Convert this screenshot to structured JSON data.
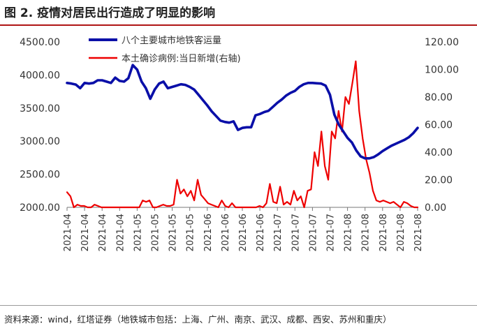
{
  "figure": {
    "title": "图 2. 疫情对居民出行造成了明显的影响",
    "source": "资料来源：wind，红塔证券（地铁城市包括：上海、广州、南京、武汉、成都、西安、苏州和重庆）"
  },
  "colors": {
    "rule": "#b01515",
    "metro": "#0a0fa8",
    "cases": "#ee0000"
  },
  "chart_data": {
    "type": "line",
    "grid": false,
    "legend_position": "top-center",
    "x_tick_labels": [
      "2021-04",
      "2021-04",
      "2021-04",
      "2021-04",
      "2021-05",
      "2021-05",
      "2021-05",
      "2021-05",
      "2021-06",
      "2021-06",
      "2021-06",
      "2021-06",
      "2021-07",
      "2021-07",
      "2021-07",
      "2021-07",
      "2021-08",
      "2021-08",
      "2021-08",
      "2021-08",
      "2021-08"
    ],
    "y_left": {
      "ticks": [
        "2000.00",
        "2500.00",
        "3000.00",
        "3500.00",
        "4000.00",
        "4500.00"
      ],
      "range": [
        2000,
        4500
      ]
    },
    "y_right": {
      "ticks": [
        "0.00",
        "20.00",
        "40.00",
        "60.00",
        "80.00",
        "100.00",
        "120.00"
      ],
      "range": [
        0,
        120
      ]
    },
    "series": [
      {
        "name": "八个主要城市地铁客运量",
        "axis": "left",
        "values": [
          3880,
          3870,
          3855,
          3800,
          3880,
          3870,
          3880,
          3920,
          3920,
          3900,
          3880,
          3960,
          3910,
          3900,
          3950,
          4150,
          4080,
          3900,
          3800,
          3640,
          3780,
          3870,
          3900,
          3800,
          3820,
          3840,
          3860,
          3850,
          3820,
          3780,
          3700,
          3620,
          3540,
          3450,
          3380,
          3310,
          3290,
          3280,
          3300,
          3170,
          3200,
          3210,
          3210,
          3390,
          3410,
          3440,
          3460,
          3520,
          3580,
          3630,
          3690,
          3730,
          3760,
          3820,
          3860,
          3880,
          3880,
          3875,
          3870,
          3840,
          3700,
          3400,
          3250,
          3150,
          3050,
          2980,
          2860,
          2770,
          2740,
          2740,
          2760,
          2800,
          2850,
          2890,
          2930,
          2960,
          2990,
          3020,
          3060,
          3120,
          3200
        ]
      },
      {
        "name": "本土确诊病例:当日新增(右轴)",
        "axis": "right",
        "values": [
          11,
          8,
          0,
          2,
          1,
          1,
          0,
          0,
          2,
          1,
          0,
          0,
          0,
          0,
          0,
          0,
          0,
          0,
          0,
          0,
          0,
          0,
          5,
          4,
          5,
          0,
          0,
          1,
          2,
          1,
          1,
          2,
          20,
          10,
          13,
          8,
          12,
          5,
          20,
          9,
          6,
          3,
          2,
          1,
          0,
          5,
          1,
          0,
          3,
          0,
          0,
          0,
          0,
          0,
          0,
          0,
          1,
          0,
          3,
          17,
          4,
          3,
          15,
          2,
          4,
          2,
          12,
          5,
          8,
          0,
          12,
          13,
          40,
          30,
          55,
          30,
          20,
          55,
          50,
          70,
          55,
          80,
          75,
          90,
          106,
          70,
          50,
          35,
          25,
          12,
          5,
          4,
          5,
          4,
          3,
          4,
          2,
          0,
          4,
          3,
          1,
          0,
          0
        ]
      }
    ]
  }
}
